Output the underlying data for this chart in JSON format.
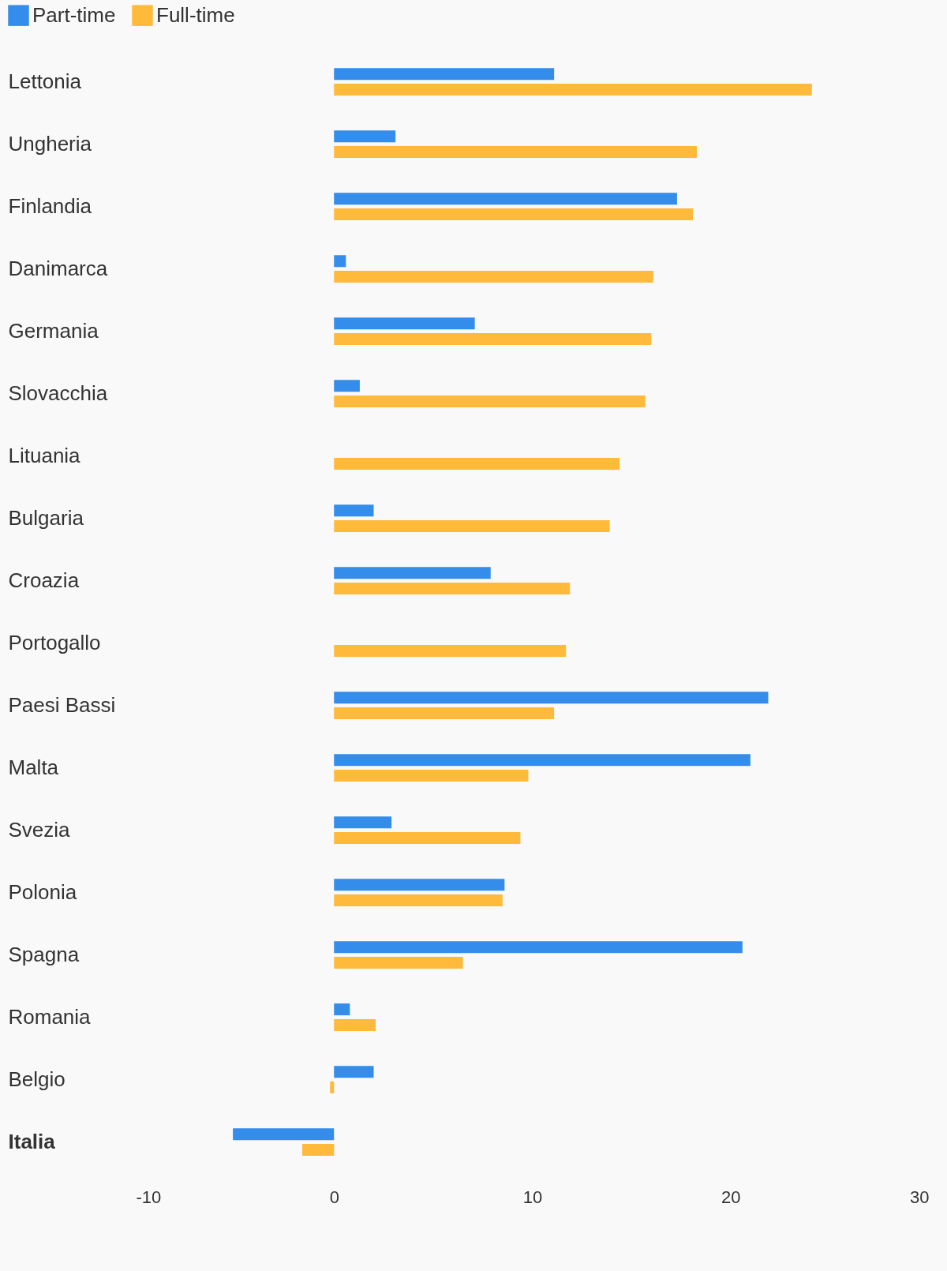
{
  "chart_data": {
    "type": "bar",
    "orientation": "horizontal",
    "legend": "top left",
    "grid": false,
    "categories": [
      "Lettonia",
      "Ungheria",
      "Finlandia",
      "Danimarca",
      "Germania",
      "Slovacchia",
      "Lituania",
      "Bulgaria",
      "Croazia",
      "Portogallo",
      "Paesi Bassi",
      "Malta",
      "Svezia",
      "Polonia",
      "Spagna",
      "Romania",
      "Belgio",
      "Italia"
    ],
    "series": [
      {
        "name": "Part-time",
        "color": "#348ceb",
        "values": [
          11.1,
          3.1,
          17.3,
          0.6,
          7.1,
          1.3,
          0,
          2.0,
          7.9,
          0,
          21.9,
          21.0,
          2.9,
          8.6,
          20.6,
          0.8,
          2.0,
          -5.1
        ]
      },
      {
        "name": "Full-time",
        "color": "#ffb93b",
        "values": [
          24.1,
          18.3,
          18.1,
          16.1,
          16.0,
          15.7,
          14.4,
          13.9,
          11.9,
          11.7,
          11.1,
          9.8,
          9.4,
          8.5,
          6.5,
          2.1,
          -0.2,
          -1.6
        ]
      }
    ],
    "xlim": [
      -10,
      30
    ],
    "xticks": [
      -10,
      0,
      10,
      20,
      30
    ]
  }
}
